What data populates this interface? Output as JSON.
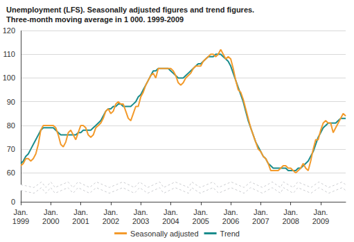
{
  "chart_data": {
    "type": "line",
    "title": "Unemployment (LFS). Seasonally adjusted figures and trend figures.\nThree-month moving average in 1 000. 1999-2009",
    "categories": [
      "Jan.\n1999",
      null,
      null,
      null,
      null,
      null,
      null,
      null,
      null,
      null,
      null,
      null,
      "Jan.\n2000",
      null,
      null,
      null,
      null,
      null,
      null,
      null,
      null,
      null,
      null,
      null,
      "Jan.\n2001",
      null,
      null,
      null,
      null,
      null,
      null,
      null,
      null,
      null,
      null,
      null,
      "Jan.\n2002",
      null,
      null,
      null,
      null,
      null,
      null,
      null,
      null,
      null,
      null,
      null,
      "Jan.\n2003",
      null,
      null,
      null,
      null,
      null,
      null,
      null,
      null,
      null,
      null,
      null,
      "Jan.\n2004",
      null,
      null,
      null,
      null,
      null,
      null,
      null,
      null,
      null,
      null,
      null,
      "Jan.\n2005",
      null,
      null,
      null,
      null,
      null,
      null,
      null,
      null,
      null,
      null,
      null,
      "Jan.\n2006",
      null,
      null,
      null,
      null,
      null,
      null,
      null,
      null,
      null,
      null,
      null,
      "Jan.\n2007",
      null,
      null,
      null,
      null,
      null,
      null,
      null,
      null,
      null,
      null,
      null,
      "Jan.\n2008",
      null,
      null,
      null,
      null,
      null,
      null,
      null,
      null,
      null,
      null,
      null,
      "Jan.\n2009",
      null,
      null,
      null,
      null,
      null,
      null,
      null,
      null,
      null,
      null
    ],
    "series": [
      {
        "name": "Seasonally adjusted",
        "color": "#f39a2b",
        "values": [
          63,
          64,
          66,
          66,
          65,
          66,
          68,
          72,
          78,
          80,
          80,
          80,
          80,
          80,
          79,
          76,
          72,
          71,
          73,
          77,
          78,
          76,
          74,
          77,
          80,
          80,
          79,
          76,
          75,
          76,
          79,
          80,
          81,
          83,
          86,
          87,
          85,
          86,
          89,
          90,
          89,
          89,
          86,
          83,
          82,
          85,
          88,
          88,
          92,
          94,
          97,
          99,
          101,
          102,
          100,
          104,
          104,
          104,
          104,
          104,
          104,
          103,
          101,
          98,
          97,
          98,
          100,
          101,
          102,
          104,
          105,
          105,
          105,
          107,
          108,
          109,
          110,
          110,
          109,
          110,
          112,
          110,
          108,
          109,
          108,
          104,
          99,
          95,
          94,
          91,
          87,
          83,
          79,
          76,
          73,
          70,
          69,
          67,
          66,
          64,
          61,
          61,
          61,
          61,
          62,
          63,
          63,
          62,
          62,
          61,
          60,
          61,
          62,
          64,
          62,
          61,
          65,
          70,
          74,
          74,
          78,
          81,
          82,
          81,
          81,
          77,
          79,
          81,
          83,
          85,
          84
        ]
      },
      {
        "name": "Trend",
        "color": "#1a8c8c",
        "values": [
          64,
          65,
          67,
          68,
          70,
          72,
          74,
          76,
          78,
          79,
          79,
          79,
          79,
          79,
          78,
          77,
          76,
          76,
          76,
          76,
          76,
          76,
          76,
          77,
          77,
          78,
          78,
          78,
          78,
          79,
          80,
          81,
          82,
          84,
          86,
          87,
          87,
          88,
          88,
          89,
          89,
          88,
          88,
          88,
          88,
          89,
          90,
          92,
          93,
          95,
          97,
          99,
          101,
          103,
          103,
          104,
          104,
          104,
          104,
          104,
          103,
          102,
          101,
          100,
          100,
          100,
          101,
          102,
          103,
          104,
          105,
          106,
          106,
          107,
          108,
          109,
          109,
          109,
          110,
          110,
          110,
          109,
          108,
          107,
          105,
          102,
          99,
          96,
          93,
          90,
          86,
          82,
          79,
          76,
          73,
          71,
          69,
          67,
          66,
          64,
          63,
          62,
          62,
          62,
          62,
          62,
          62,
          61,
          61,
          61,
          61,
          62,
          62,
          63,
          64,
          65,
          67,
          69,
          72,
          75,
          77,
          79,
          80,
          81,
          81,
          81,
          81,
          82,
          83,
          83,
          83
        ]
      }
    ],
    "ylim": [
      0,
      120
    ],
    "yticks": [
      0,
      60,
      70,
      80,
      90,
      100,
      110,
      120
    ],
    "grid": true,
    "legend": "bottom"
  }
}
